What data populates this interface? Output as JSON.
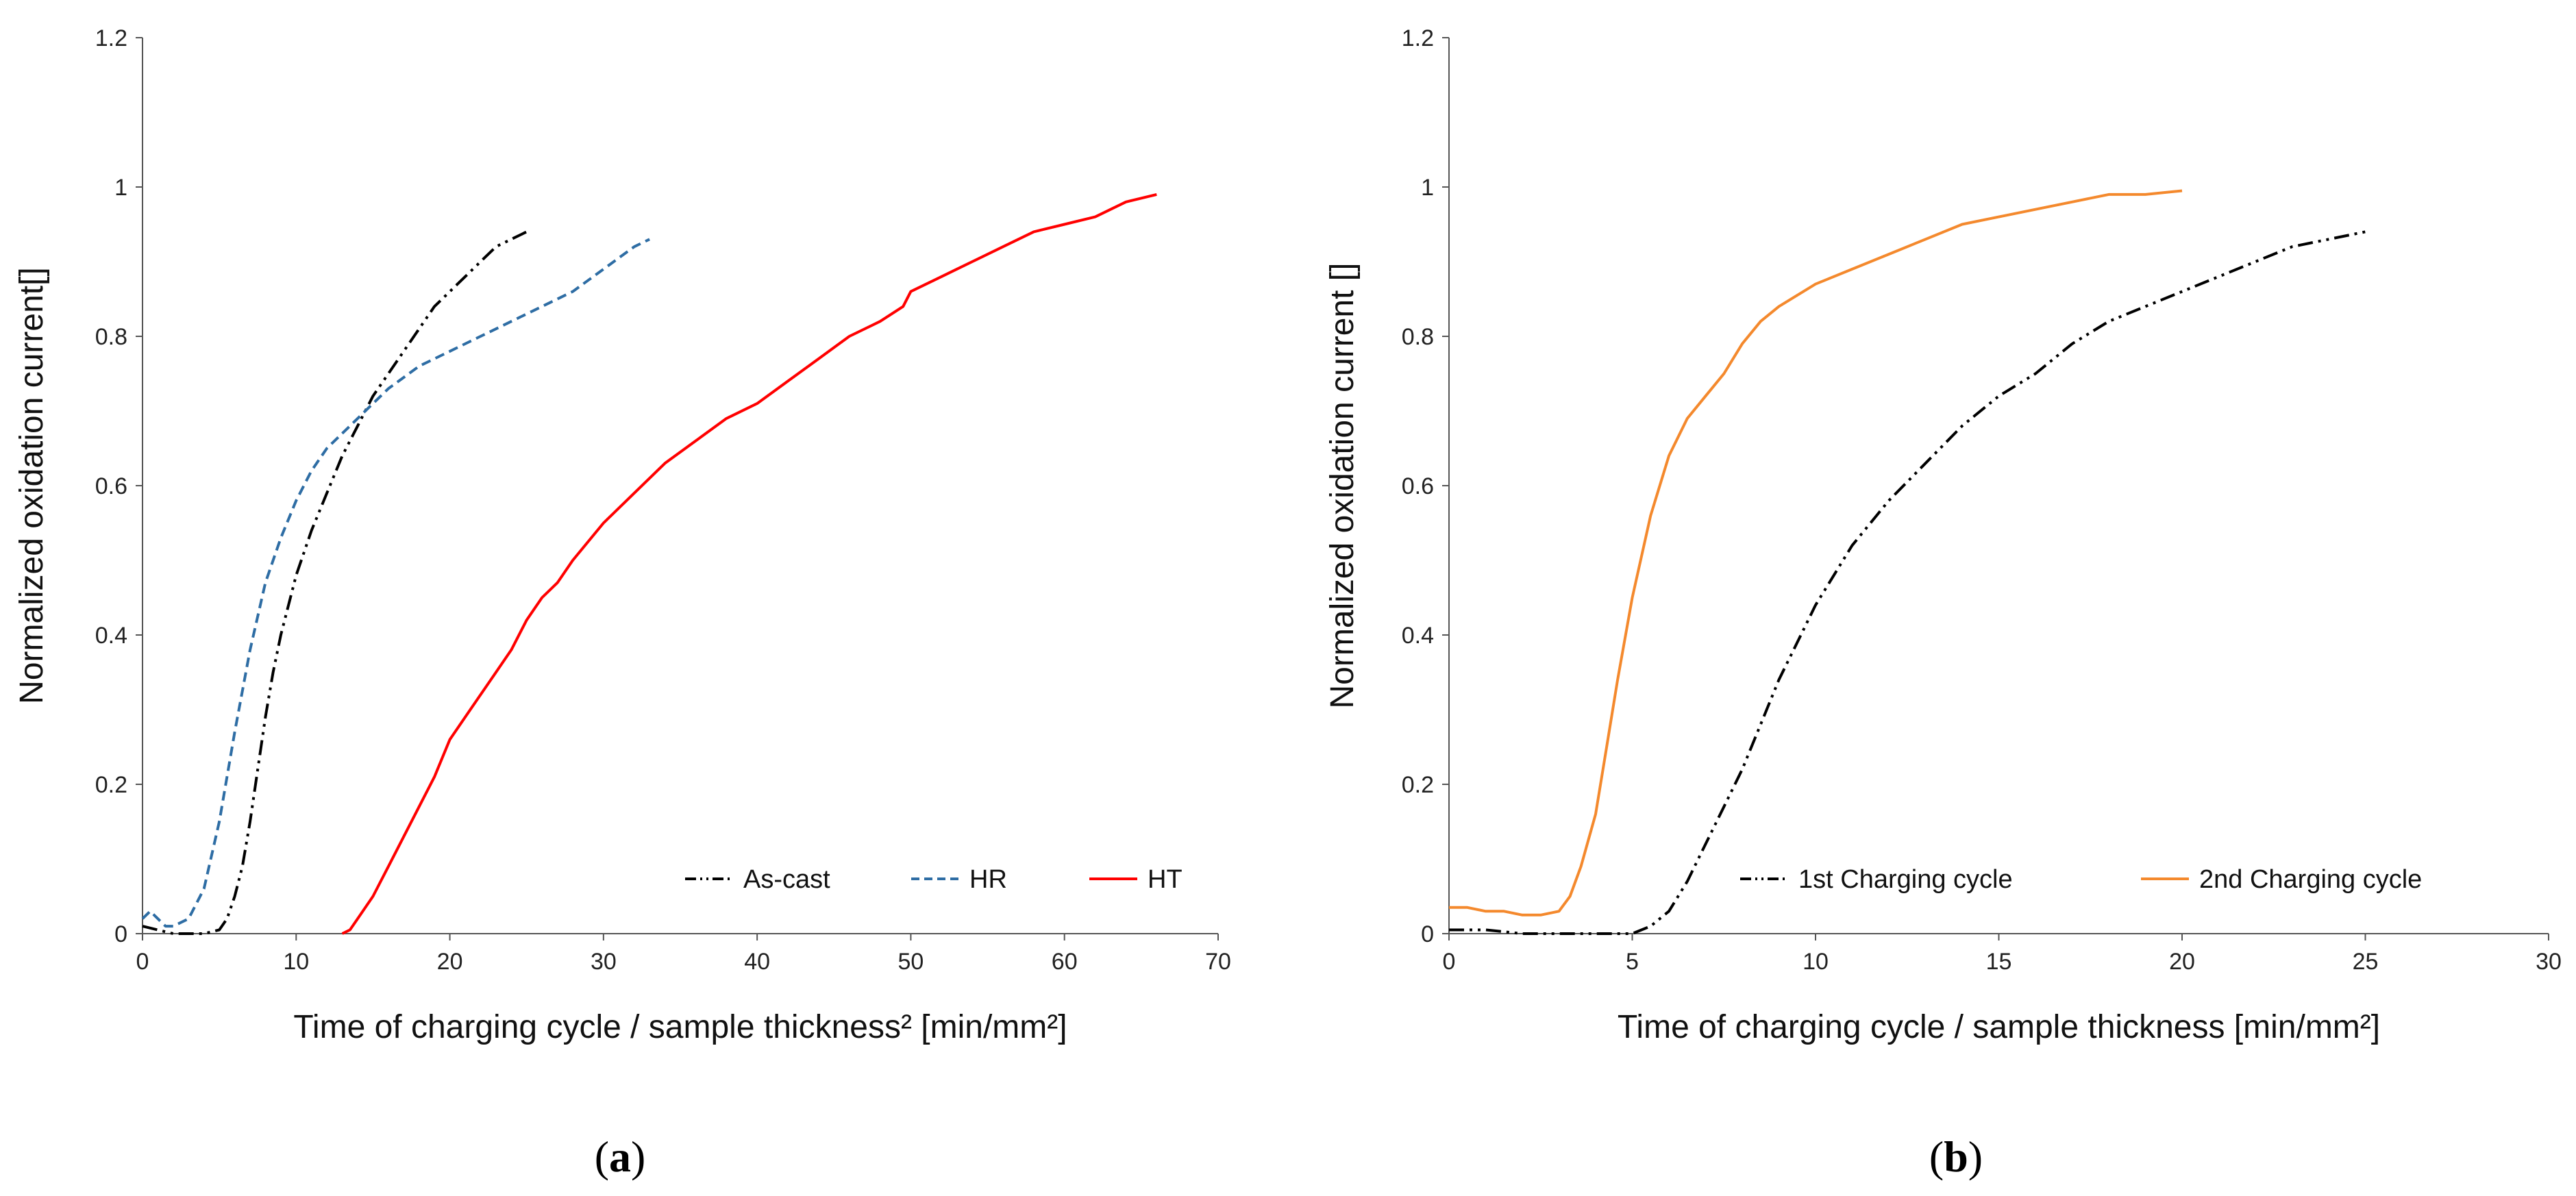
{
  "chart_data": [
    {
      "panel": "(a)",
      "type": "line",
      "xlabel": "Time of charging cycle / sample thickness² [min/mm²]",
      "ylabel": "Normalized oxidation current[]",
      "xlim": [
        0,
        70
      ],
      "ylim": [
        0,
        1.2
      ],
      "xticks": [
        0,
        10,
        20,
        30,
        40,
        50,
        60,
        70
      ],
      "yticks": [
        0,
        0.2,
        0.4,
        0.6,
        0.8,
        1,
        1.2
      ],
      "legend_position": "bottom-right",
      "grid": false,
      "series": [
        {
          "name": "As-cast",
          "color": "#000000",
          "style": "dash-dot-dot",
          "x": [
            0,
            2,
            4,
            5,
            5.5,
            6,
            6.5,
            7,
            7.5,
            8,
            8.5,
            9,
            9.5,
            10,
            11,
            12,
            13,
            14,
            15,
            16,
            17,
            18,
            19,
            20,
            21,
            22,
            23,
            24,
            25
          ],
          "y": [
            0.01,
            0.0,
            0.0,
            0.005,
            0.02,
            0.05,
            0.09,
            0.15,
            0.22,
            0.29,
            0.35,
            0.4,
            0.44,
            0.48,
            0.54,
            0.59,
            0.64,
            0.68,
            0.72,
            0.75,
            0.78,
            0.81,
            0.84,
            0.86,
            0.88,
            0.9,
            0.92,
            0.93,
            0.94
          ]
        },
        {
          "name": "HR",
          "color": "#2e6da4",
          "style": "dashed",
          "x": [
            0,
            0.5,
            1,
            1.5,
            2,
            3,
            4,
            5,
            6,
            7,
            8,
            9,
            10,
            11,
            12,
            13,
            14,
            15,
            16,
            18,
            20,
            22,
            24,
            26,
            28,
            30,
            32,
            33
          ],
          "y": [
            0.02,
            0.03,
            0.02,
            0.01,
            0.01,
            0.02,
            0.06,
            0.15,
            0.27,
            0.38,
            0.47,
            0.53,
            0.58,
            0.62,
            0.65,
            0.67,
            0.69,
            0.71,
            0.73,
            0.76,
            0.78,
            0.8,
            0.82,
            0.84,
            0.86,
            0.89,
            0.92,
            0.93
          ]
        },
        {
          "name": "HT",
          "color": "#ff0000",
          "style": "solid",
          "x": [
            13,
            13.5,
            14,
            15,
            16,
            17,
            18,
            19,
            20,
            21,
            22,
            23,
            24,
            25,
            26,
            27,
            28,
            30,
            32,
            34,
            36,
            38,
            40,
            42,
            44,
            46,
            48,
            49.5,
            50,
            52,
            54,
            56,
            58,
            60,
            62,
            64,
            66
          ],
          "y": [
            0.0,
            0.005,
            0.02,
            0.05,
            0.09,
            0.13,
            0.17,
            0.21,
            0.26,
            0.29,
            0.32,
            0.35,
            0.38,
            0.42,
            0.45,
            0.47,
            0.5,
            0.55,
            0.59,
            0.63,
            0.66,
            0.69,
            0.71,
            0.74,
            0.77,
            0.8,
            0.82,
            0.84,
            0.86,
            0.88,
            0.9,
            0.92,
            0.94,
            0.95,
            0.96,
            0.98,
            0.99
          ]
        }
      ]
    },
    {
      "panel": "(b)",
      "type": "line",
      "xlabel": "Time of charging cycle / sample thickness [min/mm²]",
      "ylabel": "Normalized oxidation current []",
      "xlim": [
        0,
        30
      ],
      "ylim": [
        0,
        1.2
      ],
      "xticks": [
        0,
        5,
        10,
        15,
        20,
        25,
        30
      ],
      "yticks": [
        0,
        0.2,
        0.4,
        0.6,
        0.8,
        1,
        1.2
      ],
      "legend_position": "bottom-right",
      "grid": false,
      "series": [
        {
          "name": "1st Charging cycle",
          "color": "#000000",
          "style": "dash-dot-dot",
          "x": [
            0,
            1,
            2,
            3,
            4,
            5,
            5.5,
            6,
            6.5,
            7,
            7.5,
            8,
            8.5,
            9,
            9.5,
            10,
            11,
            12,
            13,
            14,
            15,
            16,
            17,
            18,
            19,
            20,
            21,
            22,
            23,
            24,
            25
          ],
          "y": [
            0.005,
            0.005,
            0.0,
            0.0,
            0.0,
            0.0,
            0.01,
            0.03,
            0.07,
            0.12,
            0.17,
            0.22,
            0.28,
            0.34,
            0.39,
            0.44,
            0.52,
            0.58,
            0.63,
            0.68,
            0.72,
            0.75,
            0.79,
            0.82,
            0.84,
            0.86,
            0.88,
            0.9,
            0.92,
            0.93,
            0.94
          ]
        },
        {
          "name": "2nd Charging cycle",
          "color": "#f4892d",
          "style": "solid",
          "x": [
            0,
            0.5,
            1,
            1.5,
            2,
            2.5,
            3,
            3.3,
            3.6,
            4,
            4.3,
            4.6,
            5,
            5.5,
            6,
            6.5,
            7,
            7.5,
            8,
            8.5,
            9,
            10,
            11,
            12,
            13,
            14,
            15,
            16,
            17,
            18,
            19,
            20
          ],
          "y": [
            0.035,
            0.035,
            0.03,
            0.03,
            0.025,
            0.025,
            0.03,
            0.05,
            0.09,
            0.16,
            0.25,
            0.34,
            0.45,
            0.56,
            0.64,
            0.69,
            0.72,
            0.75,
            0.79,
            0.82,
            0.84,
            0.87,
            0.89,
            0.91,
            0.93,
            0.95,
            0.96,
            0.97,
            0.98,
            0.99,
            0.99,
            0.995
          ]
        }
      ]
    }
  ]
}
